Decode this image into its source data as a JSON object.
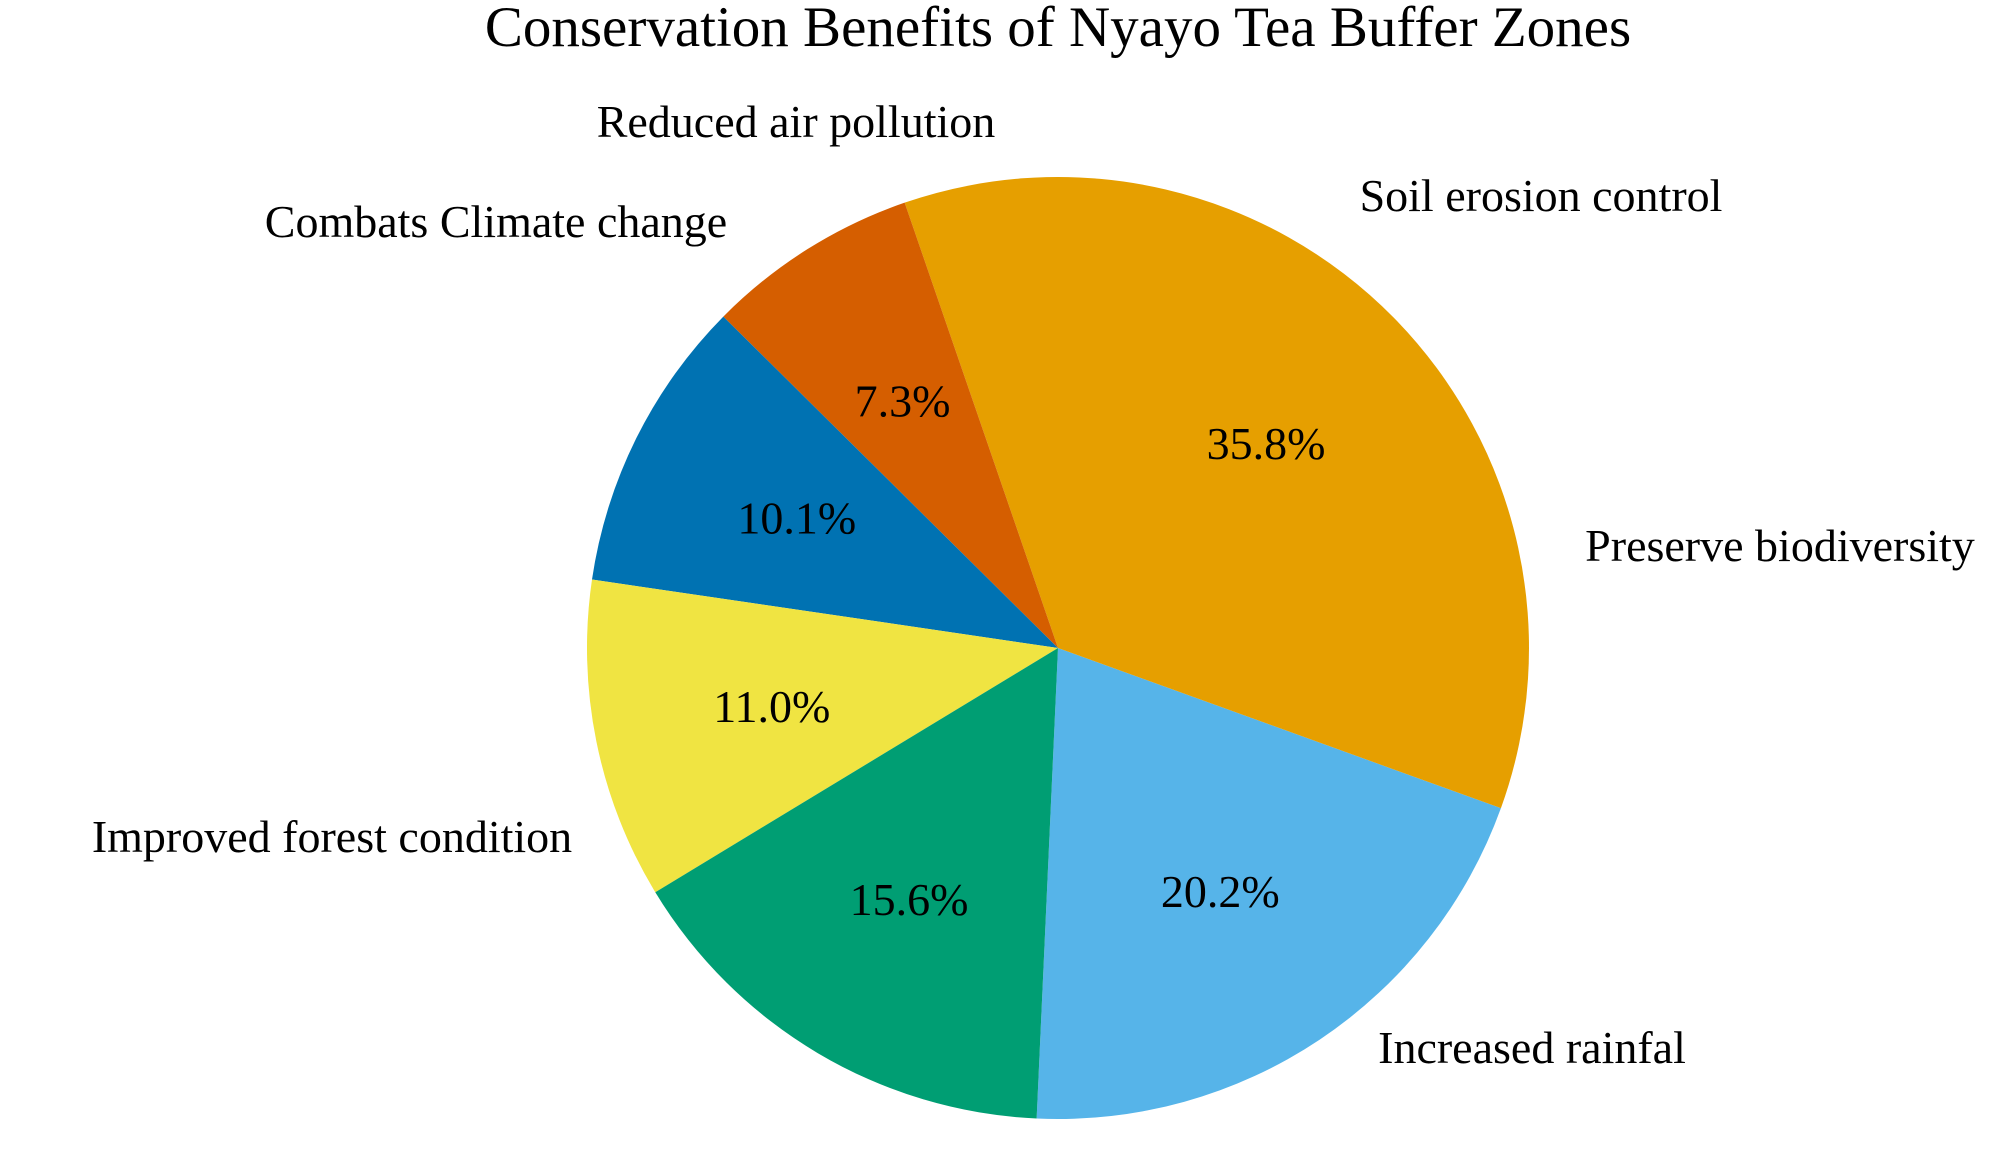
{
  "chart_data": {
    "type": "pie",
    "title": "Conservation Benefits of Nyayo Tea Buffer Zones",
    "direction": "clockwise",
    "legend": "none",
    "slices": [
      {
        "label": "Increased rainfal",
        "value": 20.2,
        "value_label": "20.2%",
        "color": "#56B4E9"
      },
      {
        "label": "Improved forest condition",
        "value": 35.8,
        "value_label": "35.8%",
        "color": "#E69F00"
      },
      {
        "label": "Combats Climate change",
        "value": 7.3,
        "value_label": "7.3%",
        "color": "#D55E00"
      },
      {
        "label": "Reduced air pollution",
        "value": 10.1,
        "value_label": "10.1%",
        "color": "#0072B2"
      },
      {
        "label": "Soil erosion control",
        "value": 11.0,
        "value_label": "11.0%",
        "color": "#F0E442"
      },
      {
        "label": "Preserve biodiversity",
        "value": 15.6,
        "value_label": "15.6%",
        "color": "#009E73"
      }
    ]
  }
}
